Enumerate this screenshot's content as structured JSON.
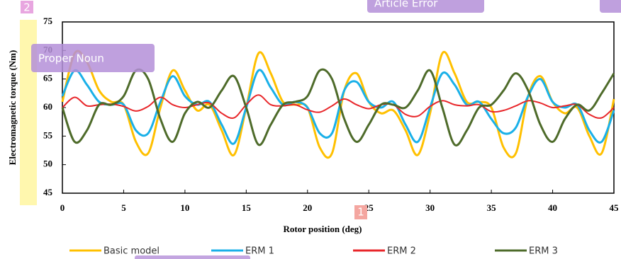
{
  "chart_data": {
    "type": "line",
    "xlabel": "Rotor position (deg)",
    "ylabel": "Electromagnetic torque (Nm)",
    "x": [
      0,
      1,
      2,
      3,
      4,
      5,
      6,
      7,
      8,
      9,
      10,
      11,
      12,
      13,
      14,
      15,
      16,
      17,
      18,
      19,
      20,
      21,
      22,
      23,
      24,
      25,
      26,
      27,
      28,
      29,
      30,
      31,
      32,
      33,
      34,
      35,
      36,
      37,
      38,
      39,
      40,
      41,
      42,
      43,
      44,
      45
    ],
    "series": [
      {
        "name": "Basic model",
        "color": "#ffc000",
        "values": [
          61,
          69.5,
          68,
          63,
          61,
          60.5,
          54,
          52,
          60,
          66.5,
          63,
          59.5,
          60.5,
          56,
          51.7,
          60,
          69.5,
          66,
          61,
          60.5,
          60,
          53,
          52,
          63,
          66,
          61,
          59,
          59.5,
          56,
          51.7,
          59,
          69.5,
          66,
          61,
          61,
          60,
          53,
          52,
          62,
          65.5,
          61,
          59,
          60,
          55,
          52,
          61.5
        ]
      },
      {
        "name": "ERM 1",
        "color": "#1ab0e8",
        "values": [
          62,
          66.5,
          64,
          61,
          60.5,
          60.5,
          56,
          55.5,
          61,
          65.5,
          62,
          60.5,
          61,
          57,
          53.7,
          60,
          66.5,
          63.5,
          60.5,
          61,
          60,
          55.5,
          55.5,
          63,
          64.5,
          61,
          60,
          61,
          57,
          54,
          60,
          66,
          64,
          60.5,
          61,
          58,
          55.5,
          56.5,
          62,
          65,
          61,
          60,
          60.5,
          56,
          54,
          59.5
        ]
      },
      {
        "name": "ERM 2",
        "color": "#e8262a",
        "values": [
          60,
          61.8,
          60.3,
          60.5,
          60.6,
          60.2,
          59.4,
          60.2,
          61.8,
          60.5,
          60,
          60.5,
          60.8,
          59,
          58.2,
          60.5,
          62.2,
          60.5,
          60.3,
          60.5,
          59.6,
          59.2,
          60.3,
          61.5,
          60.5,
          59.8,
          60.5,
          60.5,
          58.8,
          58.5,
          60.2,
          61.2,
          60.5,
          60.3,
          60.5,
          59.3,
          59.5,
          60.3,
          61.2,
          60.8,
          60,
          60.3,
          60.5,
          58.8,
          58.2,
          60
        ]
      },
      {
        "name": "ERM 3",
        "color": "#4e6b2a",
        "values": [
          60,
          54,
          56,
          60.5,
          60.5,
          62,
          66.5,
          65,
          58,
          54,
          59,
          61,
          60,
          63,
          65.5,
          60,
          53.5,
          57,
          60.5,
          61,
          62,
          66.5,
          65,
          58,
          54,
          57,
          60.5,
          60.5,
          60,
          63,
          66.5,
          60,
          53.5,
          56,
          60,
          60.5,
          63,
          66,
          63,
          57,
          54,
          58,
          60.5,
          59.5,
          62.5,
          66
        ]
      }
    ],
    "xlim": [
      0,
      45
    ],
    "xticks": [
      0,
      5,
      10,
      15,
      20,
      25,
      30,
      35,
      40,
      45
    ],
    "ylim": [
      45,
      75
    ],
    "yticks": [
      45,
      50,
      55,
      60,
      65,
      70,
      75
    ],
    "annotations": [
      "Proper Noun",
      "Article Error",
      "2",
      "1"
    ]
  }
}
